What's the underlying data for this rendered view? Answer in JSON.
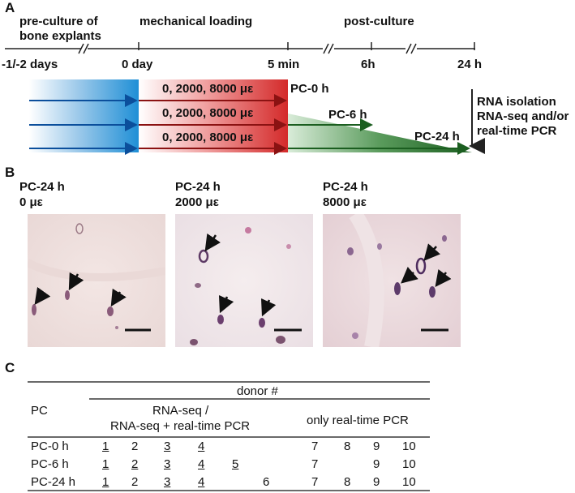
{
  "panels": {
    "a": {
      "letter": "A"
    },
    "b": {
      "letter": "B"
    },
    "c": {
      "letter": "C"
    }
  },
  "timeline": {
    "phases": [
      {
        "id": "preculture",
        "label_line1": "pre-culture of",
        "label_line2": "bone explants"
      },
      {
        "id": "loading",
        "label": "mechanical loading"
      },
      {
        "id": "post",
        "label": "post-culture"
      }
    ],
    "ticks": [
      "-1/-2 days",
      "0 day",
      "5 min",
      "6h",
      "24 h"
    ],
    "load_labels": [
      "0, 2000, 8000 με",
      "0, 2000, 8000 με",
      "0, 2000, 8000 με"
    ],
    "pc_labels": [
      "PC-0 h",
      "PC-6 h",
      "PC-24 h"
    ],
    "endpoint": [
      "RNA isolation",
      "RNA-seq and/or",
      "real-time PCR"
    ],
    "colors": {
      "preculture": "#1f8fd6",
      "loading": "#d42a2a",
      "post": "#2e7d32",
      "arrow_blue": "#0b4f9c",
      "arrow_red": "#8b1212",
      "arrow_green": "#1b5e20"
    }
  },
  "micrographs": [
    {
      "title": "PC-24 h",
      "strain": "0 με"
    },
    {
      "title": "PC-24 h",
      "strain": "2000 με"
    },
    {
      "title": "PC-24 h",
      "strain": "8000 με"
    }
  ],
  "table": {
    "top_header": "donor #",
    "col_pc": "PC",
    "group1_line1": "RNA-seq /",
    "group1_line2": "RNA-seq + real-time PCR",
    "group2": "only real-time PCR",
    "rows": [
      {
        "pc": "PC-0 h",
        "cells": [
          {
            "v": "1",
            "u": true
          },
          {
            "v": "2",
            "u": false
          },
          {
            "v": "3",
            "u": true
          },
          {
            "v": "4",
            "u": true
          },
          {
            "v": "",
            "u": false
          },
          {
            "v": "",
            "u": false
          },
          {
            "v": "7",
            "u": false
          },
          {
            "v": "8",
            "u": false
          },
          {
            "v": "9",
            "u": false
          },
          {
            "v": "10",
            "u": false
          }
        ]
      },
      {
        "pc": "PC-6 h",
        "cells": [
          {
            "v": "1",
            "u": true
          },
          {
            "v": "2",
            "u": true
          },
          {
            "v": "3",
            "u": true
          },
          {
            "v": "4",
            "u": true
          },
          {
            "v": "5",
            "u": true
          },
          {
            "v": "",
            "u": false
          },
          {
            "v": "7",
            "u": false
          },
          {
            "v": "",
            "u": false
          },
          {
            "v": "9",
            "u": false
          },
          {
            "v": "10",
            "u": false
          }
        ]
      },
      {
        "pc": "PC-24 h",
        "cells": [
          {
            "v": "1",
            "u": true
          },
          {
            "v": "2",
            "u": false
          },
          {
            "v": "3",
            "u": true
          },
          {
            "v": "4",
            "u": true
          },
          {
            "v": "",
            "u": false
          },
          {
            "v": "6",
            "u": false
          },
          {
            "v": "7",
            "u": false
          },
          {
            "v": "8",
            "u": false
          },
          {
            "v": "9",
            "u": false
          },
          {
            "v": "10",
            "u": false
          }
        ]
      }
    ]
  }
}
